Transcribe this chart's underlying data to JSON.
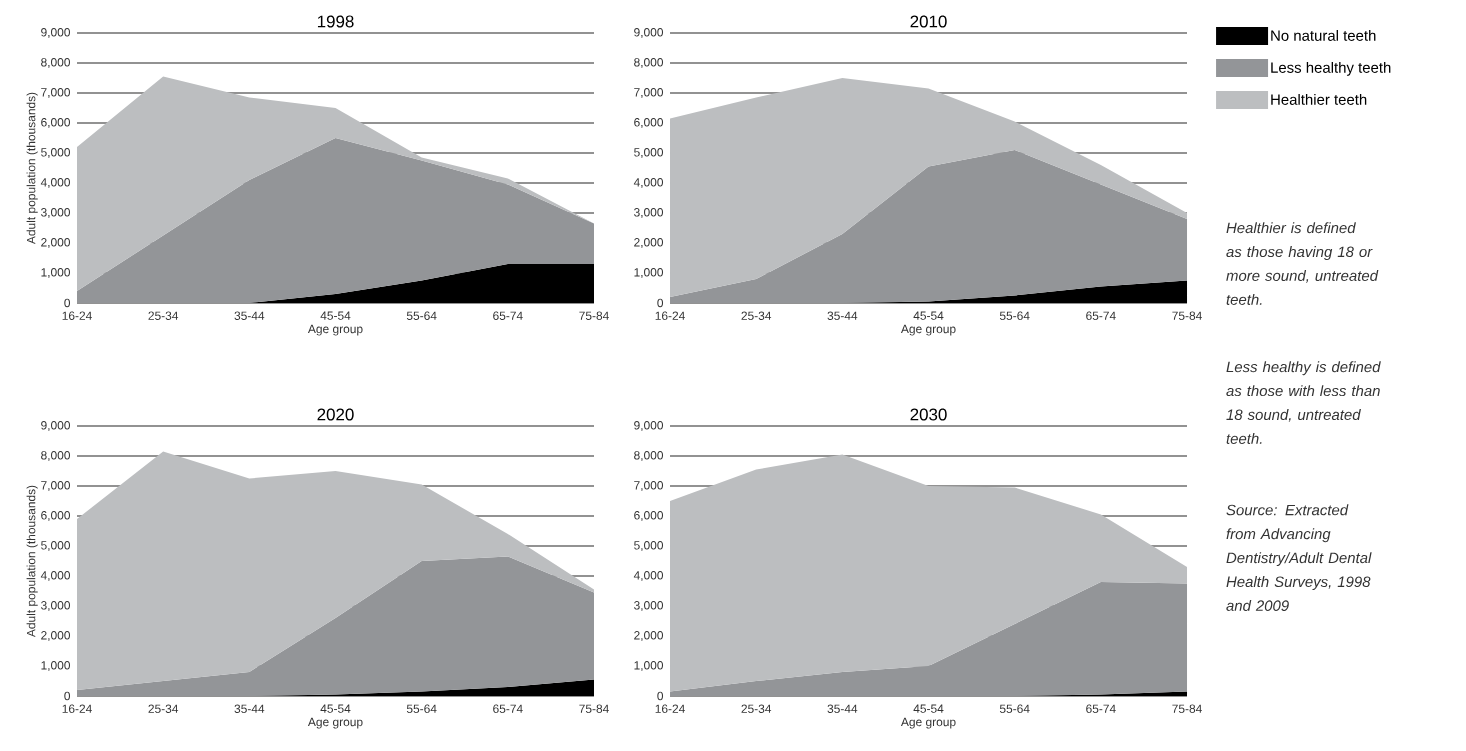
{
  "chart_data": [
    {
      "type": "area",
      "stacked": true,
      "title": "1998",
      "xlabel": "Age group",
      "ylabel": "Adult population (thousands)",
      "categories": [
        "16-24",
        "25-34",
        "35-44",
        "45-54",
        "55-64",
        "65-74",
        "75-84"
      ],
      "series": [
        {
          "color": "#000000",
          "values": [
            0,
            0,
            0,
            300,
            750,
            1300,
            1300
          ]
        },
        {
          "color": "#939598",
          "values": [
            400,
            2250,
            4100,
            5200,
            4000,
            2650,
            1350
          ]
        },
        {
          "color": "#bcbec0",
          "values": [
            4800,
            5300,
            2750,
            1000,
            100,
            200,
            0
          ]
        }
      ],
      "ylim": [
        0,
        9000
      ],
      "yticks": [
        0,
        {
          "value": 1000,
          "label": "1,000"
        },
        {
          "value": 2000,
          "label": "2,000"
        },
        {
          "value": 3000,
          "label": "3,000"
        },
        {
          "value": 4000,
          "label": "4,000"
        },
        {
          "value": 5000,
          "label": "5,000"
        },
        {
          "value": 6000,
          "label": "6,000"
        },
        {
          "value": 7000,
          "label": "7,000"
        },
        {
          "value": 8000,
          "label": "8,000"
        },
        {
          "value": 9000,
          "label": "9,000"
        }
      ],
      "grid": "y"
    },
    {
      "type": "area",
      "stacked": true,
      "title": "2010",
      "xlabel": "Age group",
      "categories": [
        "16-24",
        "25-34",
        "35-44",
        "45-54",
        "55-64",
        "65-74",
        "75-84"
      ],
      "series": [
        {
          "name": "No natural teeth",
          "color": "#000000",
          "values": [
            0,
            0,
            0,
            50,
            250,
            550,
            750
          ]
        },
        {
          "name": "Less healthy teeth",
          "color": "#939598",
          "values": [
            200,
            800,
            2300,
            4500,
            4850,
            3400,
            2050
          ]
        },
        {
          "name": "Healthier teeth",
          "color": "#bcbec0",
          "values": [
            5950,
            6050,
            5200,
            2600,
            950,
            650,
            200
          ]
        }
      ],
      "ylim": [
        0,
        9000
      ],
      "yticks": [
        0,
        {
          "value": 1000,
          "label": "1,000"
        },
        {
          "value": 2000,
          "label": "2,000"
        },
        {
          "value": 3000,
          "label": "3,000"
        },
        {
          "value": 4000,
          "label": "4,000"
        },
        {
          "value": 5000,
          "label": "5,000"
        },
        {
          "value": 6000,
          "label": "6,000"
        },
        {
          "value": 7000,
          "label": "7,000"
        },
        {
          "value": 8000,
          "label": "8,000"
        },
        {
          "value": 9000,
          "label": "9,000"
        }
      ],
      "grid": "y",
      "legend": "right",
      "annotations": [
        "Healthier is defined as those having 18 or more sound, untreated teeth.",
        "Less healthy is defined as those with less than 18 sound, untreated teeth.",
        "Source: Extracted from Advancing Dentistry/Adult Dental Health Surveys, 1998 and 2009"
      ]
    },
    {
      "type": "area",
      "stacked": true,
      "title": "2020",
      "xlabel": "Age group",
      "ylabel": "Adult population (thousands)",
      "categories": [
        "16-24",
        "25-34",
        "35-44",
        "45-54",
        "55-64",
        "65-74",
        "75-84"
      ],
      "series": [
        {
          "color": "#000000",
          "values": [
            0,
            0,
            0,
            50,
            150,
            300,
            550
          ]
        },
        {
          "color": "#939598",
          "values": [
            200,
            500,
            800,
            2550,
            4350,
            4350,
            2900
          ]
        },
        {
          "color": "#bcbec0",
          "values": [
            5700,
            7650,
            6450,
            4900,
            2550,
            750,
            100
          ]
        }
      ],
      "ylim": [
        0,
        9000
      ],
      "yticks": [
        0,
        {
          "value": 1000,
          "label": "1,000"
        },
        {
          "value": 2000,
          "label": "2,000"
        },
        {
          "value": 3000,
          "label": "3,000"
        },
        {
          "value": 4000,
          "label": "4,000"
        },
        {
          "value": 5000,
          "label": "5,000"
        },
        {
          "value": 6000,
          "label": "6,000"
        },
        {
          "value": 7000,
          "label": "7,000"
        },
        {
          "value": 8000,
          "label": "8,000"
        },
        {
          "value": 9000,
          "label": "9,000"
        }
      ],
      "grid": "y"
    },
    {
      "type": "area",
      "stacked": true,
      "title": "2030",
      "xlabel": "Age group",
      "categories": [
        "16-24",
        "25-34",
        "35-44",
        "45-54",
        "55-64",
        "65-74",
        "75-84"
      ],
      "series": [
        {
          "color": "#000000",
          "values": [
            0,
            0,
            0,
            0,
            0,
            50,
            150
          ]
        },
        {
          "color": "#939598",
          "values": [
            150,
            500,
            800,
            1000,
            2400,
            3750,
            3600
          ]
        },
        {
          "color": "#bcbec0",
          "values": [
            6350,
            7050,
            7250,
            6000,
            4550,
            2250,
            550
          ]
        }
      ],
      "ylim": [
        0,
        9000
      ],
      "yticks": [
        0,
        {
          "value": 1000,
          "label": "1,000"
        },
        {
          "value": 2000,
          "label": "2,000"
        },
        {
          "value": 3000,
          "label": "3,000"
        },
        {
          "value": 4000,
          "label": "4,000"
        },
        {
          "value": 5000,
          "label": "5,000"
        },
        {
          "value": 6000,
          "label": "6,000"
        },
        {
          "value": 7000,
          "label": "7,000"
        },
        {
          "value": 8000,
          "label": "8,000"
        },
        {
          "value": 9000,
          "label": "9,000"
        }
      ],
      "grid": "y"
    }
  ]
}
